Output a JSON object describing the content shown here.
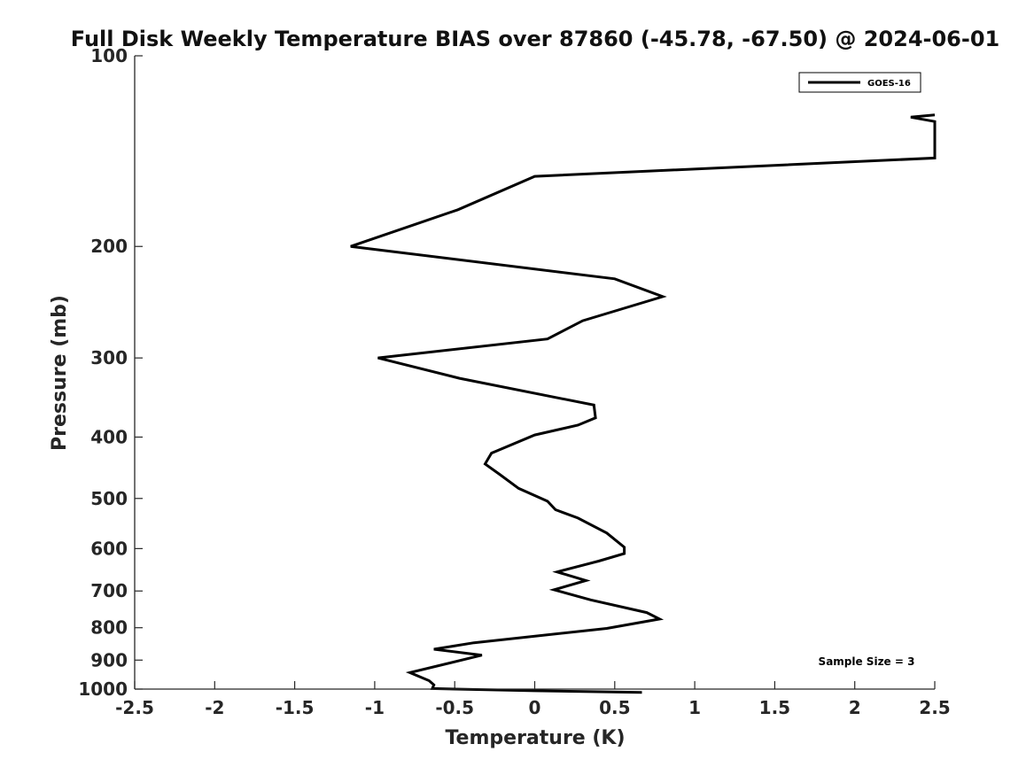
{
  "chart_data": {
    "type": "line",
    "title": "Full Disk Weekly Temperature BIAS over 87860 (-45.78, -67.50) @ 2024-06-01",
    "xlabel": "Temperature (K)",
    "ylabel": "Pressure (mb)",
    "xlim": [
      -2.5,
      2.5
    ],
    "ylim": [
      1000,
      100
    ],
    "yscale": "log",
    "x_ticks": [
      -2.5,
      -2,
      -1.5,
      -1,
      -0.5,
      0,
      0.5,
      1,
      1.5,
      2,
      2.5
    ],
    "x_tick_labels": [
      "-2.5",
      "-2",
      "-1.5",
      "-1",
      "-0.5",
      "0",
      "0.5",
      "1",
      "1.5",
      "2",
      "2.5"
    ],
    "y_ticks": [
      100,
      200,
      300,
      400,
      500,
      600,
      700,
      800,
      900,
      1000
    ],
    "y_tick_labels": [
      "100",
      "200",
      "300",
      "400",
      "500",
      "600",
      "700",
      "800",
      "900",
      "1000"
    ],
    "grid": false,
    "legend_position": "top-right",
    "series": [
      {
        "name": "GOES-16",
        "color": "#000000",
        "points": [
          [
            2.5,
            124
          ],
          [
            2.35,
            125
          ],
          [
            2.5,
            127
          ],
          [
            2.5,
            145
          ],
          [
            0,
            155
          ],
          [
            -0.48,
            175
          ],
          [
            -1.15,
            200
          ],
          [
            0.5,
            225
          ],
          [
            0.8,
            240
          ],
          [
            0.3,
            262
          ],
          [
            0.08,
            280
          ],
          [
            -0.98,
            300
          ],
          [
            -0.47,
            323
          ],
          [
            0.37,
            356
          ],
          [
            0.38,
            373
          ],
          [
            0.27,
            383
          ],
          [
            0,
            397
          ],
          [
            -0.27,
            424
          ],
          [
            -0.31,
            441
          ],
          [
            -0.22,
            458
          ],
          [
            -0.1,
            482
          ],
          [
            0.08,
            505
          ],
          [
            0.13,
            521
          ],
          [
            0.27,
            537
          ],
          [
            0.45,
            567
          ],
          [
            0.56,
            597
          ],
          [
            0.56,
            611
          ],
          [
            0.4,
            628
          ],
          [
            0.14,
            653
          ],
          [
            0.32,
            674
          ],
          [
            0.12,
            697
          ],
          [
            0.35,
            723
          ],
          [
            0.7,
            757
          ],
          [
            0.78,
            775
          ],
          [
            0.45,
            802
          ],
          [
            -0.38,
            845
          ],
          [
            -0.63,
            865
          ],
          [
            -0.33,
            884
          ],
          [
            -0.78,
            942
          ],
          [
            -0.66,
            970
          ],
          [
            -0.63,
            985
          ],
          [
            -0.64,
            998
          ],
          [
            0,
            1006
          ],
          [
            0.67,
            1012
          ]
        ]
      }
    ],
    "annotations": [
      "Sample Size = 3"
    ]
  }
}
